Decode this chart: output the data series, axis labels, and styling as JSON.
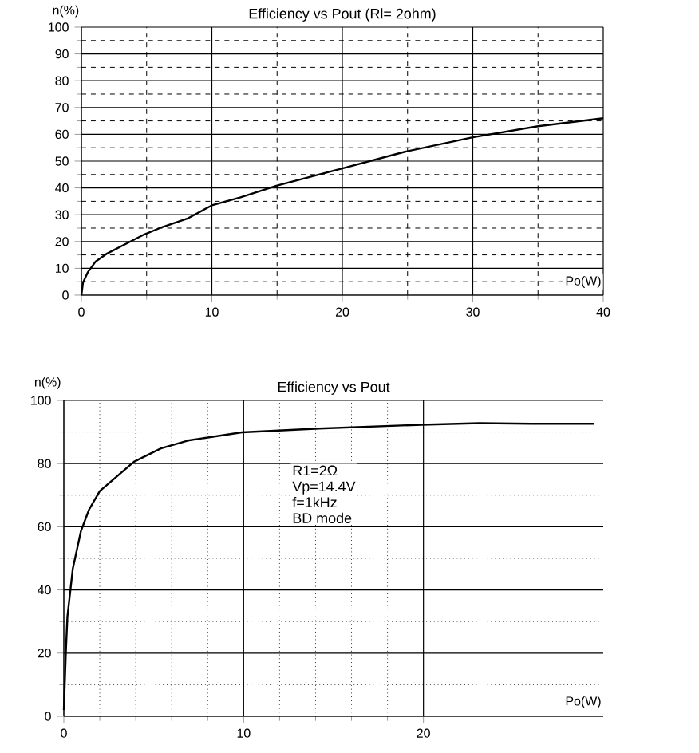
{
  "chart_data": [
    {
      "type": "line",
      "title": "Efficiency vs Pout (Rl= 2ohm)",
      "xlabel": "Po(W)",
      "ylabel": "n(%)",
      "xlim": [
        0,
        40
      ],
      "ylim": [
        0,
        100
      ],
      "xticks": [
        0,
        10,
        20,
        30,
        40
      ],
      "yticks": [
        0,
        10,
        20,
        30,
        40,
        50,
        60,
        70,
        80,
        90,
        100
      ],
      "grid": true,
      "marker": "none",
      "line_style": "solid",
      "series": [
        {
          "color": "#000000",
          "x": [
            0,
            0.12,
            0.5,
            1.1,
            2,
            3.2,
            4.8,
            6,
            8.1,
            10,
            12.2,
            15,
            20,
            24.8,
            30,
            35,
            40
          ],
          "values": [
            0,
            4.6,
            8.6,
            12.6,
            15.6,
            18.6,
            22.6,
            25,
            28.5,
            33.5,
            36.5,
            40.9,
            47.3,
            53.5,
            58.9,
            63,
            66
          ]
        }
      ]
    },
    {
      "type": "line",
      "title": "Efficiency vs Pout",
      "xlabel": "Po(W)",
      "ylabel": "n(%)",
      "xlim": [
        0,
        30
      ],
      "ylim": [
        0,
        100
      ],
      "xticks": [
        0,
        10,
        20
      ],
      "yticks": [
        0,
        20,
        40,
        60,
        80,
        100
      ],
      "grid": true,
      "marker": "none",
      "line_style": "solid",
      "annotations": [
        "R1=2Ω",
        "Vp=14.4V",
        "f=1kHz",
        "BD mode"
      ],
      "series": [
        {
          "color": "#000000",
          "x": [
            0,
            0.12,
            0.2,
            0.5,
            0.95,
            1.4,
            2,
            2.7,
            3.9,
            5.4,
            6.9,
            9.9,
            14.2,
            19.9,
            23.1,
            26,
            29.5
          ],
          "values": [
            2,
            21.5,
            31.6,
            46.8,
            58.6,
            65.4,
            71.3,
            74.7,
            80.6,
            84.8,
            87.3,
            89.9,
            91.1,
            92.3,
            92.8,
            92.6,
            92.6
          ]
        }
      ]
    }
  ]
}
